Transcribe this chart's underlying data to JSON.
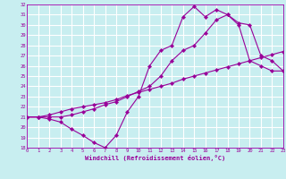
{
  "xlabel": "Windchill (Refroidissement éolien,°C)",
  "background_color": "#c8eef0",
  "grid_color": "#ffffff",
  "line_color": "#990099",
  "spine_color": "#9900aa",
  "xlim": [
    0,
    23
  ],
  "ylim": [
    18,
    32
  ],
  "xticks": [
    0,
    1,
    2,
    3,
    4,
    5,
    6,
    7,
    8,
    9,
    10,
    11,
    12,
    13,
    14,
    15,
    16,
    17,
    18,
    19,
    20,
    21,
    22,
    23
  ],
  "yticks": [
    18,
    19,
    20,
    21,
    22,
    23,
    24,
    25,
    26,
    27,
    28,
    29,
    30,
    31,
    32
  ],
  "series": [
    {
      "x": [
        0,
        1,
        2,
        3,
        4,
        5,
        6,
        7,
        8,
        9,
        10,
        11,
        12,
        13,
        14,
        15,
        16,
        17,
        18,
        19,
        20,
        21,
        22,
        23
      ],
      "y": [
        21.0,
        21.0,
        20.8,
        20.5,
        19.8,
        19.2,
        18.5,
        18.0,
        19.2,
        21.5,
        23.0,
        26.0,
        27.5,
        28.0,
        30.8,
        31.8,
        30.8,
        31.5,
        31.0,
        30.0,
        26.5,
        26.0,
        25.5,
        25.5
      ]
    },
    {
      "x": [
        0,
        1,
        2,
        3,
        4,
        5,
        6,
        7,
        8,
        9,
        10,
        11,
        12,
        13,
        14,
        15,
        16,
        17,
        18,
        19,
        20,
        21,
        22,
        23
      ],
      "y": [
        21.0,
        21.0,
        21.2,
        21.5,
        21.8,
        22.0,
        22.2,
        22.4,
        22.7,
        23.1,
        23.4,
        23.7,
        24.0,
        24.3,
        24.7,
        25.0,
        25.3,
        25.6,
        25.9,
        26.2,
        26.5,
        26.8,
        27.1,
        27.4
      ]
    },
    {
      "x": [
        0,
        1,
        2,
        3,
        4,
        5,
        6,
        7,
        8,
        9,
        10,
        11,
        12,
        13,
        14,
        15,
        16,
        17,
        18,
        19,
        20,
        21,
        22,
        23
      ],
      "y": [
        21.0,
        21.0,
        21.0,
        21.0,
        21.2,
        21.5,
        21.8,
        22.2,
        22.5,
        23.0,
        23.5,
        24.0,
        25.0,
        26.5,
        27.5,
        28.0,
        29.2,
        30.5,
        31.0,
        30.2,
        30.0,
        27.0,
        26.5,
        25.5
      ]
    }
  ]
}
